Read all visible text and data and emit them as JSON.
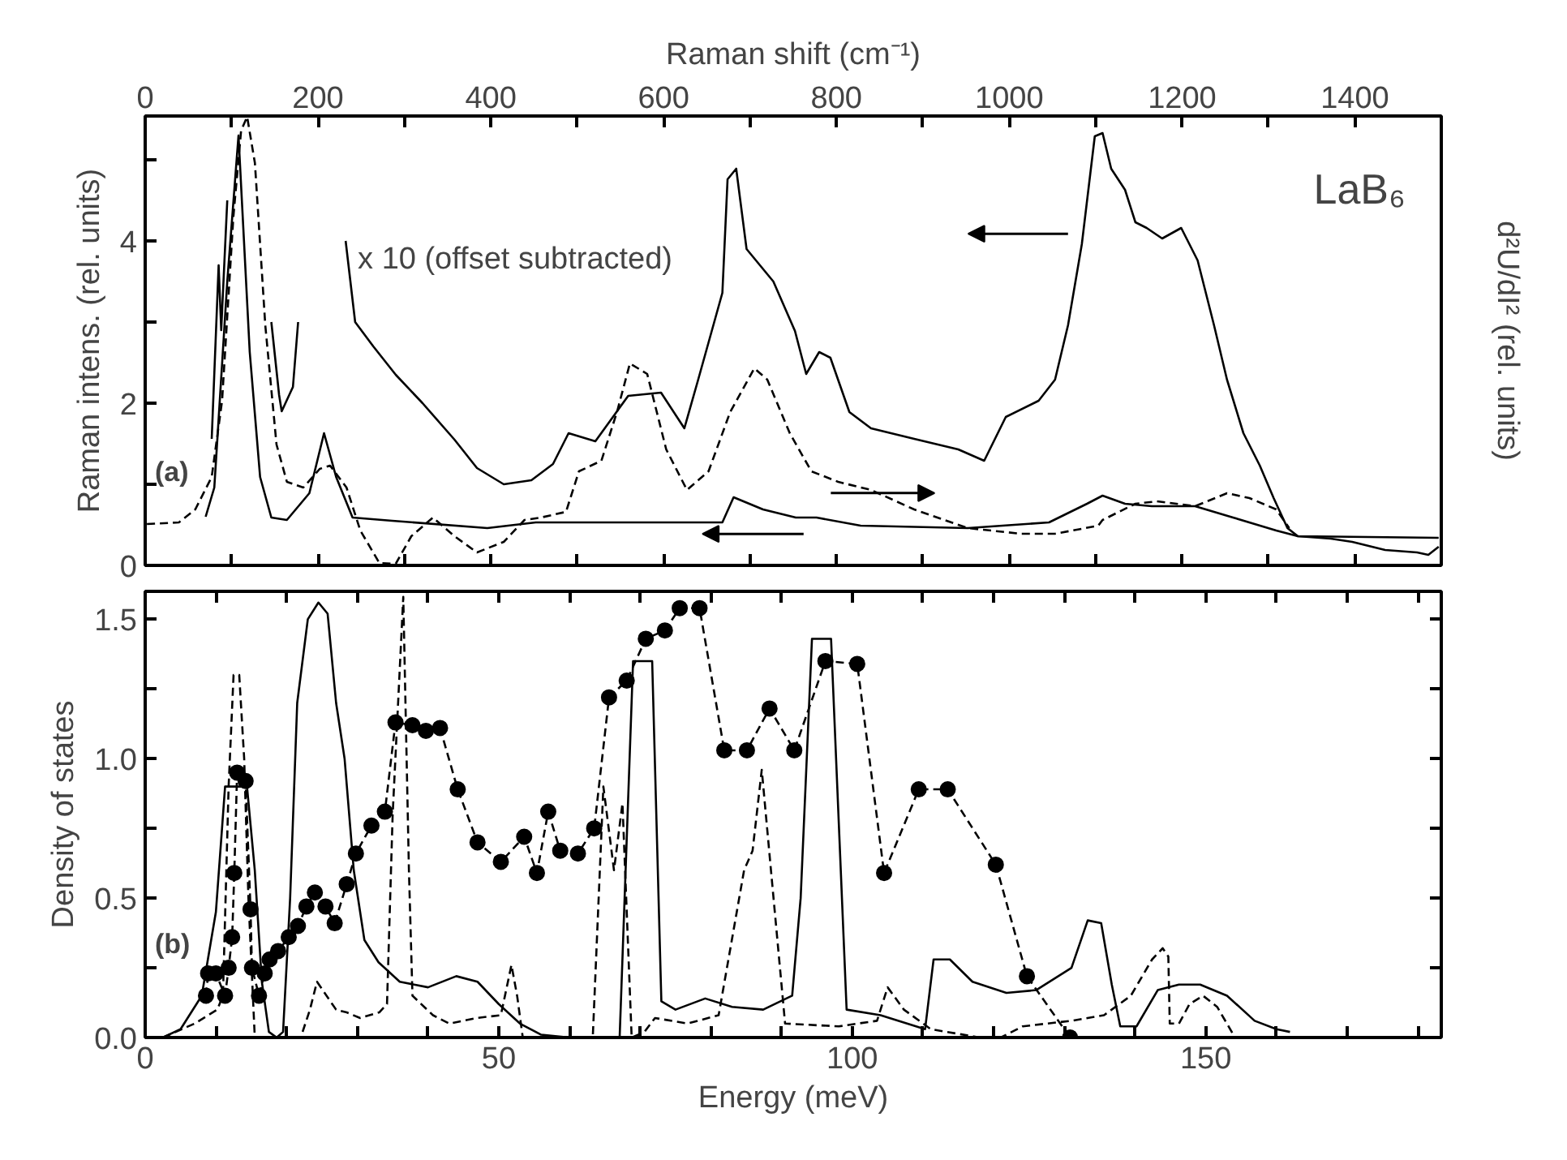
{
  "chart_data": [
    {
      "type": "line",
      "title": "LaB₆",
      "xlabel": "Raman shift (cm⁻¹)",
      "ylabel": "Raman intens. (rel. units)",
      "y2label": "d²U/dI² (rel. units)",
      "xlim": [
        0,
        1500
      ],
      "xticks": [
        0,
        {
          "value": 100,
          "label": null
        },
        200,
        {
          "value": 300,
          "label": null
        },
        400,
        {
          "value": 500,
          "label": null
        },
        600,
        {
          "value": 700,
          "label": null
        },
        800,
        {
          "value": 900,
          "label": null
        },
        1000,
        {
          "value": 1100,
          "label": null
        },
        1200,
        {
          "value": 1300,
          "label": null
        },
        1400
      ],
      "ylim": [
        0,
        5.54
      ],
      "yticks": [
        0,
        {
          "value": 1,
          "label": null
        },
        2,
        {
          "value": 3,
          "label": null
        },
        4,
        {
          "value": 5,
          "label": null
        }
      ],
      "annotations": [
        "(a)",
        "x 10 (offset subtracted)"
      ],
      "series": [
        {
          "color": "#000000",
          "line_style": "solid",
          "x": [
            77,
            85,
            88,
            95,
            104,
            120,
            137,
            146,
            155,
            158,
            171,
            177,
            187,
            205,
            226,
            232,
            243,
            264,
            290,
            321,
            358,
            384,
            415,
            447,
            472,
            490,
            521,
            559,
            597,
            624,
            640,
            668,
            674,
            684,
            696,
            727,
            752,
            765,
            780,
            793,
            815,
            840,
            890,
            941,
            971,
            996,
            1034,
            1053,
            1068,
            1084,
            1099,
            1108,
            1118,
            1134,
            1146,
            1159,
            1177,
            1199,
            1218,
            1237,
            1252,
            1271,
            1290,
            1306,
            1322,
            1334,
            1372,
            1397,
            1435,
            1472,
            1485,
            1497
          ],
          "values": [
            1.56,
            3.7,
            2.9,
            4.5,
            null,
            null,
            null,
            3.0,
            2.1,
            1.9,
            2.2,
            3.0,
            null,
            null,
            null,
            4.0,
            3.0,
            2.7,
            2.35,
            2.0,
            1.55,
            1.2,
            1.0,
            1.05,
            1.25,
            1.63,
            1.53,
            2.09,
            2.13,
            1.69,
            2.29,
            3.36,
            4.76,
            4.89,
            3.9,
            3.5,
            2.89,
            2.36,
            2.63,
            2.56,
            1.89,
            1.69,
            1.56,
            1.43,
            1.29,
            1.83,
            2.03,
            2.29,
            2.96,
            3.96,
            5.29,
            5.33,
            4.89,
            4.63,
            4.23,
            4.16,
            4.03,
            4.16,
            3.76,
            2.96,
            2.29,
            1.63,
            1.23,
            0.83,
            0.46,
            0.36,
            0.33,
            0.29,
            0.19,
            0.16,
            0.13,
            0.23
          ]
        },
        {
          "color": "#000000",
          "line_style": "solid",
          "x": [
            70,
            80,
            95,
            108,
            121,
            133,
            146,
            164,
            190,
            207,
            221,
            240,
            286,
            396,
            452,
            546,
            633,
            668,
            681,
            715,
            753,
            777,
            828,
            952,
            1046,
            1090,
            1108,
            1134,
            1165,
            1215,
            1259,
            1309,
            1334,
            1497
          ],
          "values": [
            0.6,
            0.96,
            3.5,
            5.3,
            2.63,
            1.09,
            0.59,
            0.56,
            0.89,
            1.63,
            1.09,
            0.59,
            0.55,
            0.46,
            0.53,
            0.53,
            0.53,
            0.53,
            0.84,
            0.69,
            0.59,
            0.59,
            0.49,
            0.46,
            0.53,
            0.76,
            0.86,
            0.76,
            0.73,
            0.73,
            0.59,
            0.43,
            0.36,
            0.34
          ]
        },
        {
          "color": "#000000",
          "line_style": "dashed",
          "x": [
            2,
            39,
            58,
            77,
            89,
            102,
            111,
            118,
            127,
            139,
            152,
            164,
            183,
            202,
            214,
            233,
            249,
            271,
            290,
            308,
            333,
            358,
            384,
            415,
            439,
            458,
            487,
            502,
            528,
            546,
            561,
            581,
            603,
            627,
            652,
            677,
            705,
            720,
            746,
            771,
            802,
            840,
            890,
            952,
            1014,
            1053,
            1103,
            1108,
            1146,
            1171,
            1215,
            1252,
            1278,
            1309,
            1324
          ],
          "values": [
            0.51,
            0.53,
            0.69,
            1.09,
            2.03,
            4.29,
            5.36,
            5.53,
            4.96,
            2.96,
            1.49,
            1.03,
            0.96,
            1.19,
            1.23,
            0.96,
            0.43,
            0.03,
            0.02,
            0.36,
            0.59,
            0.36,
            0.16,
            0.29,
            0.56,
            0.59,
            0.66,
            1.16,
            1.29,
            1.89,
            2.49,
            2.36,
            1.43,
            0.93,
            1.16,
            1.89,
            2.43,
            2.29,
            1.63,
            1.16,
            1.03,
            0.93,
            0.69,
            0.46,
            0.39,
            0.39,
            0.49,
            0.56,
            0.76,
            0.79,
            0.73,
            0.89,
            0.83,
            0.69,
            0.46
          ]
        }
      ]
    },
    {
      "type": "line",
      "xlabel": "Energy (meV)",
      "ylabel": "Density of states",
      "xlim": [
        0,
        183.3
      ],
      "xticks": [
        0,
        {
          "value": 10,
          "label": null
        },
        {
          "value": 20,
          "label": null
        },
        {
          "value": 30,
          "label": null
        },
        {
          "value": 40,
          "label": null
        },
        50,
        {
          "value": 60,
          "label": null
        },
        {
          "value": 70,
          "label": null
        },
        {
          "value": 80,
          "label": null
        },
        {
          "value": 90,
          "label": null
        },
        100,
        {
          "value": 110,
          "label": null
        },
        {
          "value": 120,
          "label": null
        },
        {
          "value": 130,
          "label": null
        },
        {
          "value": 140,
          "label": null
        },
        150,
        {
          "value": 160,
          "label": null
        },
        {
          "value": 170,
          "label": null
        },
        {
          "value": 180,
          "label": null
        }
      ],
      "ylim": [
        0,
        1.6
      ],
      "yticks": [
        {
          "value": 0,
          "label": "0.0"
        },
        {
          "value": 0.25,
          "label": null
        },
        {
          "value": 0.5,
          "label": "0.5"
        },
        {
          "value": 0.75,
          "label": null
        },
        {
          "value": 1.0,
          "label": "1.0"
        },
        {
          "value": 1.25,
          "label": null
        },
        {
          "value": 1.5,
          "label": "1.5"
        }
      ],
      "annotations": [
        "(b)"
      ],
      "series": [
        {
          "color": "#000000",
          "line_style": "solid",
          "x": [
            2.5,
            5,
            8,
            10,
            11.3,
            14.4,
            15.5,
            16.5,
            17.5,
            18.6,
            19.5,
            20.5,
            21.5,
            23,
            24.5,
            25.8,
            27,
            28.2,
            29.5,
            31,
            33,
            36,
            40,
            44,
            47,
            50,
            53,
            56,
            60,
            67.1,
            69,
            71.7,
            73,
            75,
            79.2,
            83,
            87.4,
            91.5,
            92.7,
            94.3,
            97,
            99.2,
            104,
            110.3,
            111.5,
            113.8,
            117,
            121.8,
            126,
            131,
            133.3,
            135.2,
            136.7,
            137.9,
            140.2,
            143.2,
            146.2,
            149.2,
            153,
            156.9,
            160,
            161.9
          ],
          "values": [
            0,
            0.03,
            0.15,
            0.45,
            0.9,
            0.9,
            0.6,
            0.2,
            0.02,
            0,
            0.02,
            0.5,
            1.2,
            1.5,
            1.56,
            1.52,
            1.2,
            1.0,
            0.6,
            0.35,
            0.27,
            0.2,
            0.18,
            0.22,
            0.2,
            0.12,
            0.05,
            0.01,
            0,
            0,
            1.35,
            1.35,
            0.13,
            0.1,
            0.14,
            0.11,
            0.1,
            0.15,
            0.5,
            1.43,
            1.43,
            0.1,
            0.08,
            0.03,
            0.28,
            0.28,
            0.2,
            0.16,
            0.17,
            0.25,
            0.42,
            0.41,
            0.19,
            0.04,
            0.04,
            0.17,
            0.19,
            0.19,
            0.15,
            0.06,
            0.03,
            0.02
          ]
        },
        {
          "color": "#000000",
          "line_style": "dashed",
          "x": [
            2.5,
            7,
            10.2,
            11,
            11.8,
            12.5,
            13.3,
            14,
            14.6,
            15.5,
            22,
            23.3,
            24.3,
            27,
            28.5,
            30.4,
            33.1,
            34.2,
            35,
            36.5,
            37.3,
            37.8,
            40.7,
            43,
            46.9,
            50.3,
            51.8,
            52.6,
            53.4,
            63.3,
            64.8,
            66.3,
            67.5,
            68.8,
            70.6,
            72.1,
            76.7,
            81.1,
            84.7,
            85.9,
            87.2,
            88.5,
            90.5,
            98.1,
            103.5,
            105,
            107.3,
            111.1,
            118,
            121,
            124.1,
            131,
            135.6,
            139.4,
            142.4,
            143.9,
            144.7,
            144.9,
            146.2,
            147.7,
            149.6,
            151.6,
            153.9
          ],
          "values": [
            0,
            0.05,
            0.1,
            0.15,
            0.9,
            1.3,
            1.3,
            1.0,
            0.5,
            0,
            0,
            0.1,
            0.2,
            0.1,
            0.09,
            0.07,
            0.09,
            0.12,
            0.8,
            1.58,
            0.6,
            0.15,
            0.08,
            0.05,
            0.07,
            0.08,
            0.26,
            0.15,
            0,
            0,
            0.9,
            0.6,
            0.84,
            0,
            0.02,
            0.07,
            0.05,
            0.08,
            0.6,
            0.67,
            0.96,
            0.6,
            0.05,
            0.04,
            0.06,
            0.18,
            0.1,
            0.03,
            0,
            0,
            0.04,
            0.06,
            0.08,
            0.15,
            0.28,
            0.32,
            0.29,
            0.05,
            0.05,
            0.12,
            0.15,
            0.11,
            0.01
          ]
        },
        {
          "color": "#000000",
          "line_style": "dashed",
          "marker": "circle",
          "x": [
            8.6,
            8.9,
            10.0,
            11.3,
            11.8,
            12.3,
            12.6,
            13.0,
            14.2,
            14.9,
            15.1,
            16.1,
            16.9,
            17.6,
            18.8,
            20.3,
            21.6,
            22.8,
            24.0,
            25.5,
            26.8,
            28.5,
            29.8,
            32.0,
            33.9,
            35.4,
            37.8,
            39.7,
            41.7,
            44.2,
            47.0,
            50.3,
            53.6,
            55.4,
            57.0,
            58.7,
            61.2,
            63.5,
            65.6,
            68.1,
            70.8,
            73.5,
            75.6,
            78.4,
            81.9,
            85.1,
            88.3,
            91.8,
            96.2,
            100.7,
            104.5,
            109.4,
            113.5,
            120.3,
            124.7,
            130.8
          ],
          "values": [
            0.15,
            0.23,
            0.23,
            0.15,
            0.25,
            0.36,
            0.59,
            0.95,
            0.92,
            0.46,
            0.25,
            0.15,
            0.23,
            0.28,
            0.31,
            0.36,
            0.4,
            0.47,
            0.52,
            0.47,
            0.41,
            0.55,
            0.66,
            0.76,
            0.81,
            1.13,
            1.12,
            1.1,
            1.11,
            0.89,
            0.7,
            0.63,
            0.72,
            0.59,
            0.81,
            0.67,
            0.66,
            0.75,
            1.22,
            1.28,
            1.43,
            1.46,
            1.54,
            1.54,
            1.03,
            1.03,
            1.18,
            1.03,
            1.35,
            1.34,
            0.59,
            0.89,
            0.89,
            0.62,
            0.22,
            0.0
          ]
        }
      ]
    }
  ]
}
